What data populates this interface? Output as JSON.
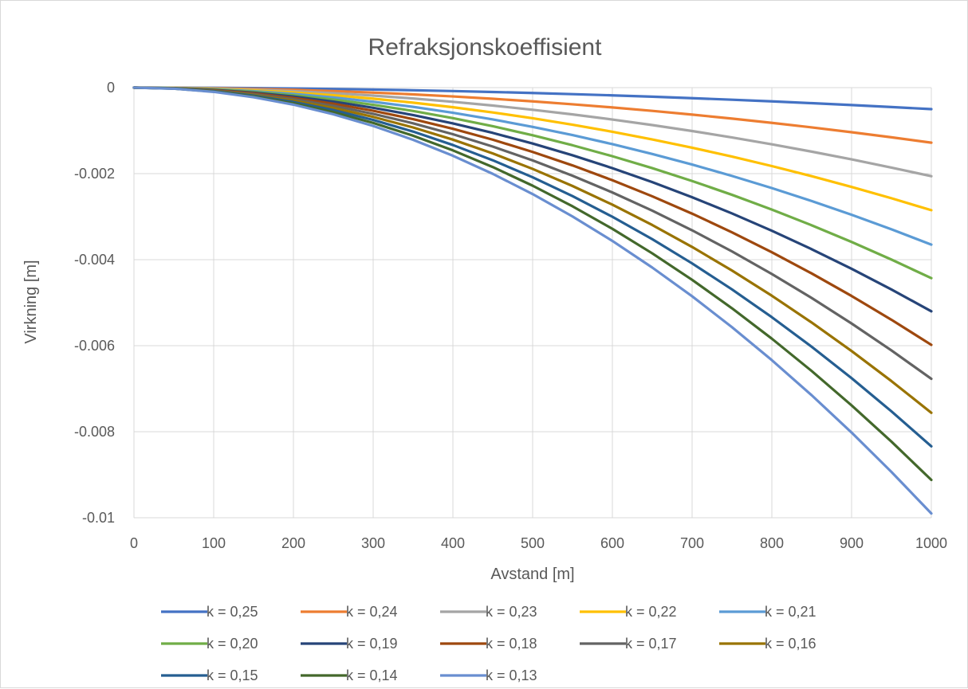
{
  "chart_data": {
    "type": "line",
    "title": "Refraksjonskoeffisient",
    "xlabel": "Avstand [m]",
    "ylabel": "Virkning [m]",
    "xlim": [
      0,
      1000
    ],
    "ylim": [
      -0.01,
      0
    ],
    "x_ticks": [
      "0",
      "100",
      "200",
      "300",
      "400",
      "500",
      "600",
      "700",
      "800",
      "900",
      "1000"
    ],
    "y_ticks": [
      "0",
      "-0.002",
      "-0.004",
      "-0.006",
      "-0.008",
      "-0.01"
    ],
    "grid": true,
    "legend_position": "bottom",
    "x": [
      0,
      50,
      100,
      150,
      200,
      250,
      300,
      350,
      400,
      450,
      500,
      550,
      600,
      650,
      700,
      750,
      800,
      850,
      900,
      950,
      1000
    ],
    "series": [
      {
        "name": "k = 0,25",
        "color": "#4472c4",
        "end_value": -0.0005
      },
      {
        "name": "k = 0,24",
        "color": "#ed7d31",
        "end_value": -0.00128
      },
      {
        "name": "k = 0,23",
        "color": "#a5a5a5",
        "end_value": -0.00206
      },
      {
        "name": "k = 0,22",
        "color": "#ffc000",
        "end_value": -0.00285
      },
      {
        "name": "k = 0,21",
        "color": "#5b9bd5",
        "end_value": -0.00365
      },
      {
        "name": "k = 0,20",
        "color": "#70ad47",
        "end_value": -0.00443
      },
      {
        "name": "k = 0,19",
        "color": "#264478",
        "end_value": -0.0052
      },
      {
        "name": "k = 0,18",
        "color": "#9e480e",
        "end_value": -0.00598
      },
      {
        "name": "k = 0,17",
        "color": "#636363",
        "end_value": -0.00677
      },
      {
        "name": "k = 0,16",
        "color": "#997300",
        "end_value": -0.00756
      },
      {
        "name": "k = 0,15",
        "color": "#255e91",
        "end_value": -0.00834
      },
      {
        "name": "k = 0,14",
        "color": "#43682b",
        "end_value": -0.00912
      },
      {
        "name": "k = 0,13",
        "color": "#698ed0",
        "end_value": -0.0099
      }
    ]
  }
}
